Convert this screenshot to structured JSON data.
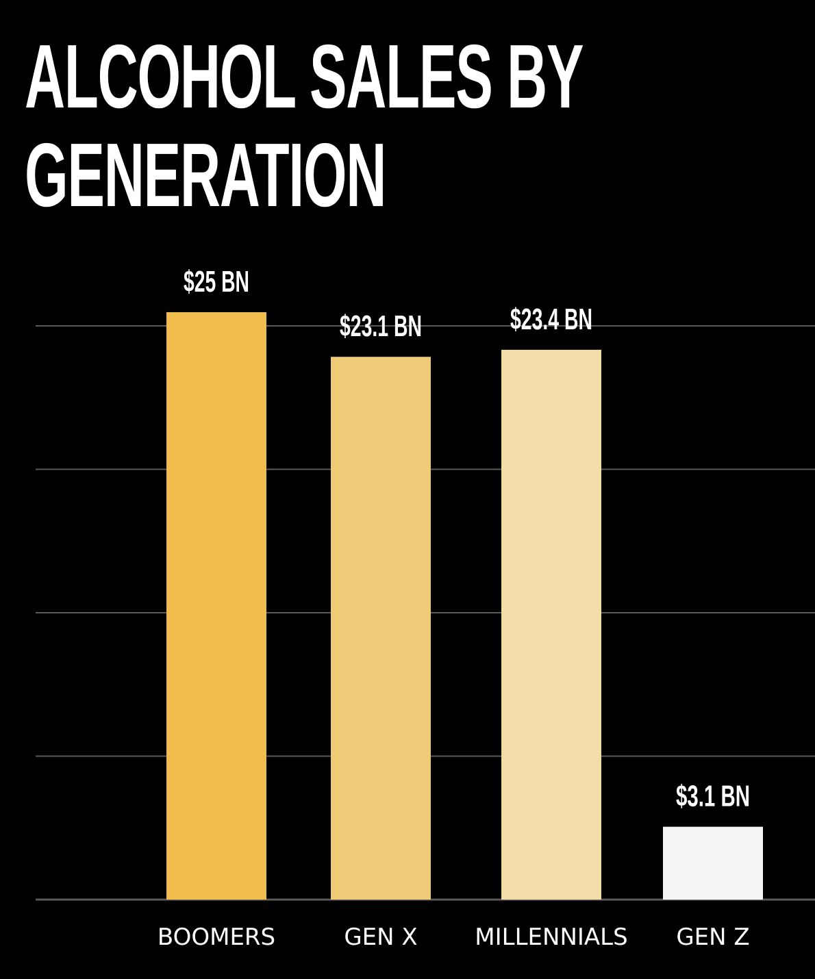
{
  "title_lines": [
    "ALCOHOL SALES BY",
    "GENERATION"
  ],
  "chart_data": {
    "type": "bar",
    "title": "ALCOHOL SALES BY GENERATION",
    "categories": [
      "BOOMERS",
      "GEN X",
      "MILLENNIALS",
      "GEN Z"
    ],
    "values": [
      25,
      23.1,
      23.4,
      3.1
    ],
    "value_labels": [
      "$25 BN",
      "$23.1 BN",
      "$23.4 BN",
      "$3.1 BN"
    ],
    "unit": "BN",
    "xlabel": "",
    "ylabel": "",
    "ylim": [
      0,
      25
    ],
    "grid": true,
    "gridline_count": 5,
    "bar_colors": [
      "#F0BC4C",
      "#EFCB77",
      "#F2DDA8",
      "#F5F5F5"
    ],
    "gridline_color": "#5a5a5a",
    "background": "#000000",
    "text_color": "#ffffff"
  }
}
